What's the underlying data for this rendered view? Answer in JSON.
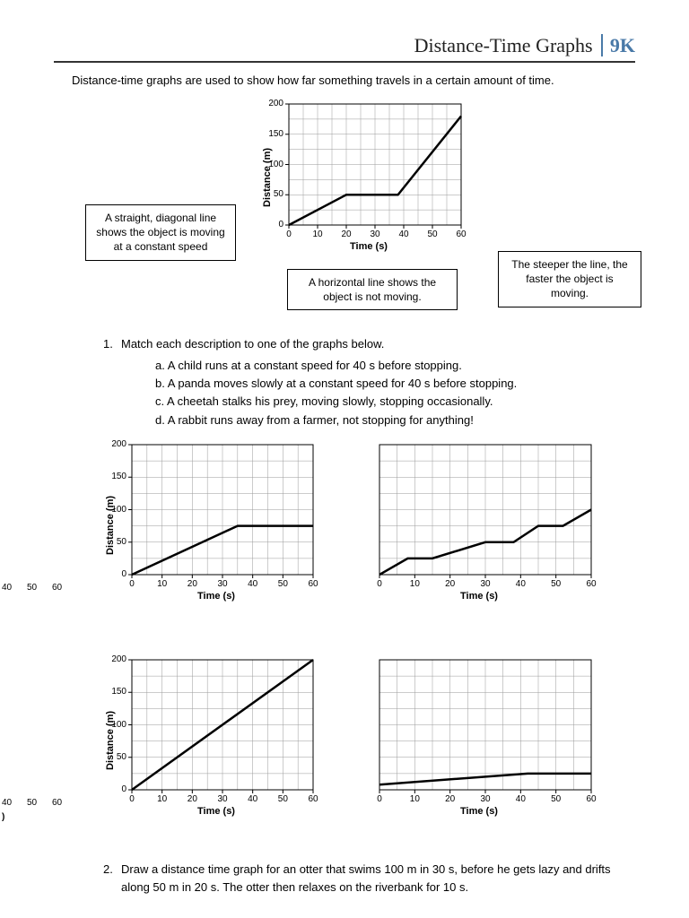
{
  "header": {
    "title": "Distance-Time Graphs",
    "code": "9K",
    "code_color": "#4a7aa8"
  },
  "intro": "Distance-time graphs are used to show how far something travels in a certain amount of time.",
  "callouts": {
    "left": "A straight, diagonal line shows the object is moving at a constant speed",
    "mid": "A horizontal line shows the object is not moving.",
    "right": "The steeper the line, the faster the object is moving."
  },
  "q1": {
    "number": "1.",
    "stem": "Match each description to one of the graphs below.",
    "items": [
      {
        "letter": "a",
        "text": "A child runs at a constant speed for 40 s before stopping."
      },
      {
        "letter": "b",
        "text": "A panda moves slowly at a constant speed for 40 s before stopping."
      },
      {
        "letter": "c",
        "text": "A cheetah stalks his prey, moving slowly, stopping occasionally."
      },
      {
        "letter": "d",
        "text": "A rabbit runs away from a farmer, not stopping for anything!"
      }
    ]
  },
  "q2": {
    "number": "2.",
    "text": "Draw a distance time graph for an otter that swims 100 m in 30 s, before he gets lazy and drifts along 50 m in 20 s. The otter then relaxes on the riverbank for 10 s."
  },
  "chart_style": {
    "xlabel": "Time (s)",
    "ylabel": "Distance (m)",
    "xmin": 0,
    "xmax": 60,
    "xstep": 10,
    "ymin": 0,
    "ymax": 200,
    "ystep": 50,
    "grid_minor_x": 12,
    "grid_minor_y": 8,
    "grid_color": "#9a9a9a",
    "axis_color": "#000000",
    "line_color": "#000000",
    "line_width": 2.5,
    "bg": "#ffffff"
  },
  "main_chart": {
    "points": [
      [
        0,
        0
      ],
      [
        20,
        50
      ],
      [
        38,
        50
      ],
      [
        60,
        180
      ]
    ]
  },
  "small_charts": [
    {
      "points": [
        [
          0,
          0
        ],
        [
          35,
          75
        ],
        [
          60,
          75
        ]
      ],
      "show_y_axis": true
    },
    {
      "points": [
        [
          0,
          0
        ],
        [
          8,
          25
        ],
        [
          15,
          25
        ],
        [
          30,
          50
        ],
        [
          38,
          50
        ],
        [
          45,
          75
        ],
        [
          52,
          75
        ],
        [
          60,
          100
        ]
      ],
      "show_y_axis": false
    },
    {
      "points": [
        [
          0,
          0
        ],
        [
          60,
          200
        ]
      ],
      "show_y_axis": true
    },
    {
      "points": [
        [
          0,
          8
        ],
        [
          42,
          25
        ],
        [
          60,
          25
        ]
      ],
      "show_y_axis": false
    }
  ],
  "stray_ticks": {
    "row1": [
      "40",
      "50",
      "60"
    ],
    "row2": [
      "40",
      "50",
      "60"
    ],
    "row2_paren": ")"
  }
}
